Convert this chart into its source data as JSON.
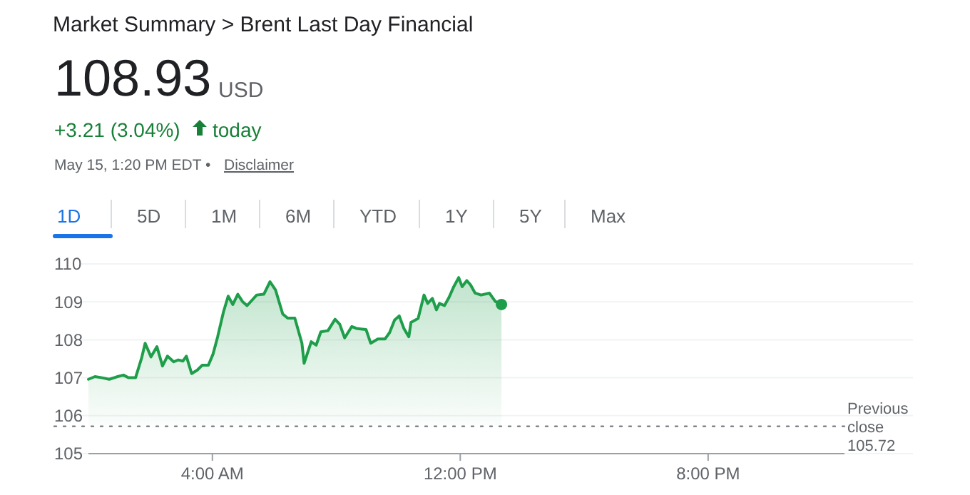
{
  "chart_data": {
    "type": "area",
    "title": "Market Summary > Brent Last Day Financial",
    "annotations": [
      "108.93",
      "USD",
      "+3.21 (3.04%)",
      "today",
      "May 15, 1:20 PM EDT •",
      "Disclaimer",
      "1D",
      "5D",
      "1M",
      "6M",
      "YTD",
      "1Y",
      "5Y",
      "Max"
    ],
    "x": [
      0,
      0.21,
      0.44,
      0.67,
      0.9,
      1.13,
      1.29,
      1.52,
      1.72,
      1.83,
      2.02,
      2.21,
      2.39,
      2.55,
      2.75,
      2.9,
      3.05,
      3.16,
      3.33,
      3.51,
      3.67,
      3.87,
      4.02,
      4.17,
      4.36,
      4.51,
      4.66,
      4.82,
      4.97,
      5.12,
      5.43,
      5.66,
      5.86,
      6.04,
      6.27,
      6.43,
      6.66,
      6.89,
      6.96,
      7.19,
      7.35,
      7.5,
      7.73,
      7.96,
      8.11,
      8.27,
      8.5,
      8.65,
      8.96,
      9.11,
      9.34,
      9.57,
      9.72,
      9.88,
      10.03,
      10.18,
      10.34,
      10.41,
      10.64,
      10.83,
      10.95,
      11.1,
      11.23,
      11.33,
      11.49,
      11.64,
      11.79,
      11.95,
      12.06,
      12.21,
      12.33,
      12.48,
      12.67,
      12.94,
      13.13,
      13.33
    ],
    "series": [
      {
        "color": "#1e9e4a",
        "values": [
          106.96,
          107.03,
          107.0,
          106.96,
          107.02,
          107.07,
          107.0,
          107.0,
          107.53,
          107.91,
          107.55,
          107.82,
          107.31,
          107.57,
          107.42,
          107.47,
          107.44,
          107.57,
          107.11,
          107.2,
          107.33,
          107.33,
          107.62,
          108.08,
          108.74,
          109.15,
          108.93,
          109.2,
          109.01,
          108.9,
          109.18,
          109.2,
          109.53,
          109.31,
          108.68,
          108.57,
          108.57,
          107.91,
          107.38,
          107.95,
          107.86,
          108.21,
          108.24,
          108.54,
          108.41,
          108.05,
          108.35,
          108.3,
          108.27,
          107.91,
          108.02,
          108.02,
          108.19,
          108.52,
          108.63,
          108.3,
          108.08,
          108.46,
          108.56,
          109.18,
          108.96,
          109.09,
          108.79,
          108.96,
          108.9,
          109.12,
          109.4,
          109.64,
          109.4,
          109.56,
          109.45,
          109.23,
          109.18,
          109.23,
          109.01,
          108.93
        ]
      }
    ],
    "xlim": [
      0,
      24.4
    ],
    "xticks": [
      {
        "value": 4,
        "label": "4:00 AM"
      },
      {
        "value": 12,
        "label": "12:00 PM"
      },
      {
        "value": 20,
        "label": "8:00 PM"
      }
    ],
    "ylim": [
      105,
      110
    ],
    "yticks": [
      105,
      106,
      107,
      108,
      109,
      110
    ],
    "grid": "y",
    "marker": "none",
    "line_style": "solid",
    "ref_lines": [
      {
        "axis": "y",
        "value": 105.72,
        "label": "Previous close 105.72",
        "line_style": "dotted",
        "color": "#80868b"
      }
    ]
  }
}
